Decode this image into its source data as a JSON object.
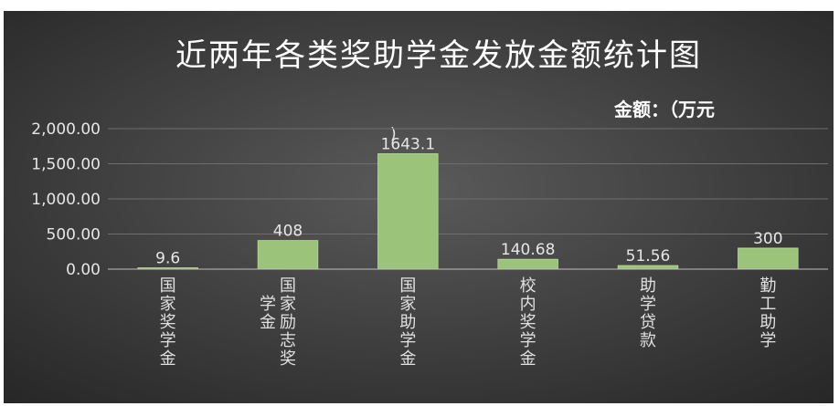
{
  "chart_data": {
    "type": "bar",
    "title": "近两年各类奖助学金发放金额统计图",
    "unit_label": "金额：（万元",
    "unit_tail": ")",
    "categories": [
      "国家奖学金",
      "国家励志奖学金",
      "国家助学金",
      "校内奖学金",
      "助学贷款",
      "勤工助学"
    ],
    "values": [
      9.6,
      408,
      1643.1,
      140.68,
      51.56,
      300
    ],
    "data_labels": [
      "9.6",
      "408",
      "1643.1",
      "140.68",
      "51.56",
      "300"
    ],
    "yticks": [
      0,
      500,
      1000,
      1500,
      2000
    ],
    "ytick_labels": [
      "0.00",
      "500.00",
      "1,000.00",
      "1,500.00",
      "2,000.00"
    ],
    "ylim": [
      0,
      2000
    ],
    "grid": true,
    "legend": "none",
    "colors": {
      "bar": "#9cc37a",
      "background_center": "#5a5a5a",
      "background_edge": "#262626",
      "gridline": "#6e6e6e",
      "text": "#e6e6e6"
    }
  }
}
